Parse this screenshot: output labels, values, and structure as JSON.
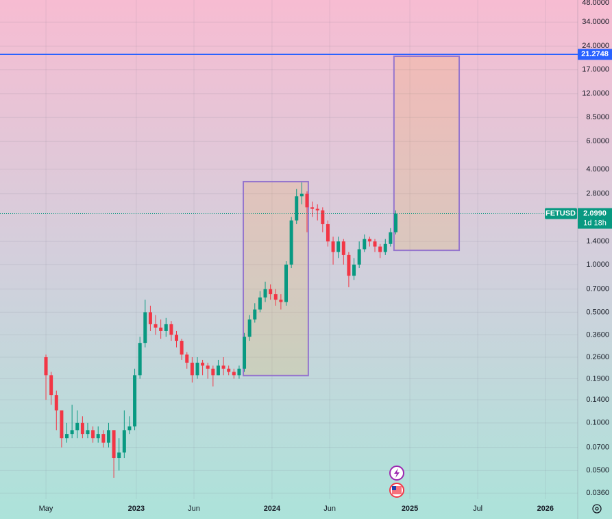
{
  "chart_data": {
    "type": "candlestick",
    "symbol": "FETUSD",
    "countdown": "1d 18h",
    "log_scale": true,
    "up_color": "#089981",
    "down_color": "#f23645",
    "x": [
      0,
      2,
      4,
      6,
      8,
      10,
      12,
      14,
      16,
      18,
      20,
      22,
      24,
      26,
      28,
      30,
      32,
      34,
      36,
      38,
      40,
      42,
      44,
      46,
      48,
      50,
      52,
      54,
      56,
      58,
      60,
      62,
      64,
      66,
      68,
      70,
      72,
      74,
      76,
      78,
      80,
      82,
      84,
      86,
      88,
      90,
      92,
      94,
      96,
      98,
      100,
      102,
      104,
      106,
      108,
      110,
      112,
      114,
      116,
      118,
      120,
      122,
      124,
      126,
      128,
      130,
      132,
      134
    ],
    "open": [
      0.26,
      0.2,
      0.15,
      0.12,
      0.08,
      0.085,
      0.09,
      0.1,
      0.085,
      0.09,
      0.08,
      0.085,
      0.075,
      0.09,
      0.06,
      0.065,
      0.09,
      0.095,
      0.2,
      0.32,
      0.5,
      0.42,
      0.4,
      0.38,
      0.42,
      0.36,
      0.33,
      0.27,
      0.24,
      0.2,
      0.24,
      0.23,
      0.22,
      0.2,
      0.23,
      0.22,
      0.21,
      0.2,
      0.22,
      0.35,
      0.45,
      0.52,
      0.62,
      0.7,
      0.65,
      0.6,
      0.58,
      1.0,
      1.9,
      2.7,
      2.8,
      2.3,
      2.25,
      2.2,
      1.8,
      1.4,
      1.2,
      1.4,
      1.15,
      0.85,
      1.0,
      1.25,
      1.45,
      1.4,
      1.3,
      1.2,
      1.35,
      1.6
    ],
    "high": [
      0.27,
      0.21,
      0.16,
      0.12,
      0.1,
      0.13,
      0.12,
      0.11,
      0.1,
      0.095,
      0.095,
      0.09,
      0.1,
      0.09,
      0.08,
      0.12,
      0.11,
      0.22,
      0.35,
      0.6,
      0.55,
      0.48,
      0.45,
      0.46,
      0.44,
      0.38,
      0.34,
      0.28,
      0.26,
      0.26,
      0.25,
      0.24,
      0.23,
      0.25,
      0.26,
      0.23,
      0.22,
      0.23,
      0.37,
      0.48,
      0.57,
      0.68,
      0.78,
      0.75,
      0.7,
      0.65,
      1.05,
      2.0,
      3.0,
      3.3,
      2.9,
      2.5,
      2.4,
      2.3,
      1.9,
      1.5,
      1.5,
      1.45,
      1.2,
      1.1,
      1.4,
      1.55,
      1.5,
      1.45,
      1.35,
      1.45,
      1.7,
      2.2
    ],
    "low": [
      0.14,
      0.13,
      0.09,
      0.07,
      0.075,
      0.08,
      0.08,
      0.08,
      0.08,
      0.075,
      0.075,
      0.07,
      0.07,
      0.045,
      0.05,
      0.06,
      0.085,
      0.09,
      0.19,
      0.3,
      0.38,
      0.36,
      0.34,
      0.35,
      0.33,
      0.3,
      0.25,
      0.22,
      0.18,
      0.19,
      0.2,
      0.19,
      0.17,
      0.2,
      0.2,
      0.2,
      0.19,
      0.19,
      0.21,
      0.33,
      0.43,
      0.5,
      0.58,
      0.6,
      0.55,
      0.52,
      0.55,
      0.95,
      1.8,
      2.4,
      1.6,
      2.0,
      1.9,
      1.6,
      1.3,
      1.0,
      1.1,
      1.0,
      0.72,
      0.8,
      0.95,
      1.2,
      1.3,
      1.2,
      1.1,
      1.15,
      1.3,
      1.55
    ],
    "close": [
      0.2,
      0.15,
      0.12,
      0.08,
      0.085,
      0.09,
      0.1,
      0.085,
      0.09,
      0.08,
      0.085,
      0.075,
      0.09,
      0.06,
      0.065,
      0.09,
      0.095,
      0.2,
      0.32,
      0.5,
      0.42,
      0.4,
      0.38,
      0.42,
      0.36,
      0.33,
      0.27,
      0.24,
      0.2,
      0.24,
      0.23,
      0.22,
      0.2,
      0.23,
      0.22,
      0.21,
      0.2,
      0.22,
      0.35,
      0.45,
      0.52,
      0.62,
      0.7,
      0.65,
      0.6,
      0.58,
      1.0,
      1.9,
      2.7,
      2.8,
      2.3,
      2.25,
      2.2,
      1.8,
      1.4,
      1.2,
      1.4,
      1.15,
      0.85,
      1.0,
      1.25,
      1.45,
      1.4,
      1.3,
      1.2,
      1.35,
      1.6,
      2.099
    ],
    "xlim": [
      -17.6,
      203.7
    ],
    "xticks": [
      {
        "value": 0,
        "label": "May"
      },
      {
        "value": 34.6,
        "label": "2023"
      },
      {
        "value": 56.7,
        "label": "Jun"
      },
      {
        "value": 86.6,
        "label": "2024"
      },
      {
        "value": 108.7,
        "label": "Jun"
      },
      {
        "value": 139.4,
        "label": "2025"
      },
      {
        "value": 165.4,
        "label": "Jul"
      },
      {
        "value": 191.3,
        "label": "2026"
      }
    ],
    "ylim": [
      0.033,
      46.9
    ],
    "yticks": [
      {
        "value": 48,
        "label": "48.0000"
      },
      {
        "value": 34,
        "label": "34.0000"
      },
      {
        "value": 24,
        "label": "24.0000"
      },
      {
        "value": 17,
        "label": "17.0000"
      },
      {
        "value": 12,
        "label": "12.0000"
      },
      {
        "value": 8.5,
        "label": "8.5000"
      },
      {
        "value": 6,
        "label": "6.0000"
      },
      {
        "value": 4,
        "label": "4.0000"
      },
      {
        "value": 2.8,
        "label": "2.8000"
      },
      {
        "value": 1.4,
        "label": "1.4000"
      },
      {
        "value": 1,
        "label": "1.0000"
      },
      {
        "value": 0.7,
        "label": "0.7000"
      },
      {
        "value": 0.5,
        "label": "0.5000"
      },
      {
        "value": 0.36,
        "label": "0.3600"
      },
      {
        "value": 0.26,
        "label": "0.2600"
      },
      {
        "value": 0.19,
        "label": "0.1900"
      },
      {
        "value": 0.14,
        "label": "0.1400"
      },
      {
        "value": 0.1,
        "label": "0.1000"
      },
      {
        "value": 0.07,
        "label": "0.0700"
      },
      {
        "value": 0.05,
        "label": "0.0500"
      },
      {
        "value": 0.036,
        "label": "0.0360"
      }
    ],
    "hline": {
      "value": 21.2748,
      "label": "21.2748",
      "color": "#2962ff"
    },
    "last_price": {
      "value": 2.099,
      "label": "2.0990"
    },
    "boxes": [
      {
        "x": [
          75.6,
          100.5
        ],
        "y": [
          0.199,
          3.34
        ],
        "color": "#9575cd"
      },
      {
        "x": [
          133.3,
          158.3
        ],
        "y": [
          1.23,
          20.7
        ],
        "color": "#9575cd"
      }
    ]
  }
}
